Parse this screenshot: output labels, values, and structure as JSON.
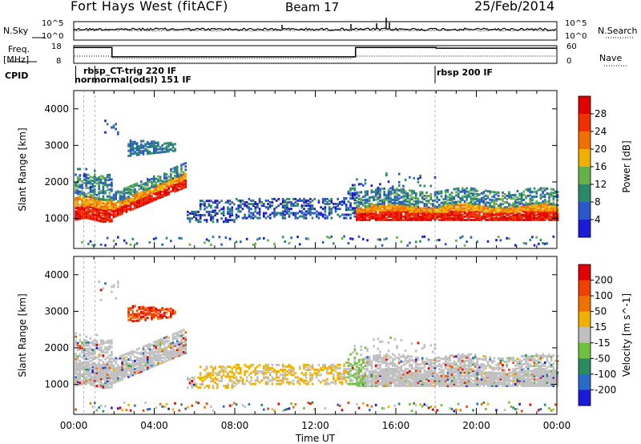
{
  "header": {
    "station": "Fort Hays West (fitACF)",
    "beam": "Beam 17",
    "date": "25/Feb/2014"
  },
  "nsky_panel": {
    "left_label": "N.Sky",
    "right_label": "N.Search",
    "left_ticks": [
      "10^5",
      "10^0"
    ],
    "right_ticks": [
      "10^5",
      "10^0"
    ]
  },
  "freq_panel": {
    "left_label_1": "Freq.",
    "left_label_2": "[MHz]",
    "right_label": "Nave",
    "left_ticks": [
      "18",
      "8"
    ],
    "right_ticks": [
      "60",
      "0"
    ]
  },
  "cpid": {
    "label": "CPID",
    "entries": [
      {
        "text": "rbsp_CT-trig 220 IF",
        "x_hours": 1.1
      },
      {
        "text": "normormal(odsl) 151 IF",
        "x_hours": 0.1
      },
      {
        "text": "rbsp 200 IF",
        "x_hours": 18.0
      }
    ]
  },
  "colors": {
    "power_scale": [
      "#1a1ad8",
      "#2a58c8",
      "#2a8a68",
      "#66b04a",
      "#f0b000",
      "#f07000",
      "#f03000",
      "#e00000"
    ],
    "velocity_scale": [
      "#1a1ad8",
      "#2a6ac8",
      "#2a8a60",
      "#70c040",
      "#c0c0c0",
      "#f0b000",
      "#f07000",
      "#f04000",
      "#e00000"
    ]
  },
  "chart_data": [
    {
      "type": "line",
      "panel": "nsky-nsearch",
      "x_range": [
        0,
        24
      ],
      "y_scale": "log",
      "ylim": [
        1,
        100000
      ]
    },
    {
      "type": "line",
      "panel": "frequency-nave",
      "x_range": [
        0,
        24
      ],
      "ylim": [
        8,
        18
      ],
      "y2lim": [
        0,
        60
      ],
      "freq_steps": [
        {
          "start": 0.0,
          "end": 1.9,
          "value": 17
        },
        {
          "start": 1.9,
          "end": 14.0,
          "value": 11.7
        },
        {
          "start": 14.0,
          "end": 18.0,
          "value": 17
        },
        {
          "start": 18.0,
          "end": 24.0,
          "value": 16.6
        }
      ]
    },
    {
      "type": "heatmap",
      "panel": "power",
      "xlabel": "",
      "ylabel": "Slant Range [km]",
      "x_range": [
        0,
        24
      ],
      "ylim": [
        180,
        4500
      ],
      "yticks": [
        1000,
        2000,
        3000,
        4000
      ],
      "colorbar_label": "Power [dB]",
      "colorbar_ticks": [
        "28",
        "24",
        "20",
        "16",
        "12",
        "8",
        "4"
      ]
    },
    {
      "type": "heatmap",
      "panel": "velocity",
      "xlabel": "Time UT",
      "ylabel": "Slant Range [km]",
      "x_range": [
        0,
        24
      ],
      "ylim": [
        180,
        4500
      ],
      "yticks": [
        1000,
        2000,
        3000,
        4000
      ],
      "xticks": [
        "00:00",
        "04:00",
        "08:00",
        "12:00",
        "16:00",
        "20:00",
        "00:00"
      ],
      "colorbar_label": "Velocity [m s^-1]",
      "colorbar_ticks": [
        "200",
        "100",
        "50",
        "15",
        "-15",
        "-50",
        "-100",
        "-200"
      ]
    }
  ]
}
